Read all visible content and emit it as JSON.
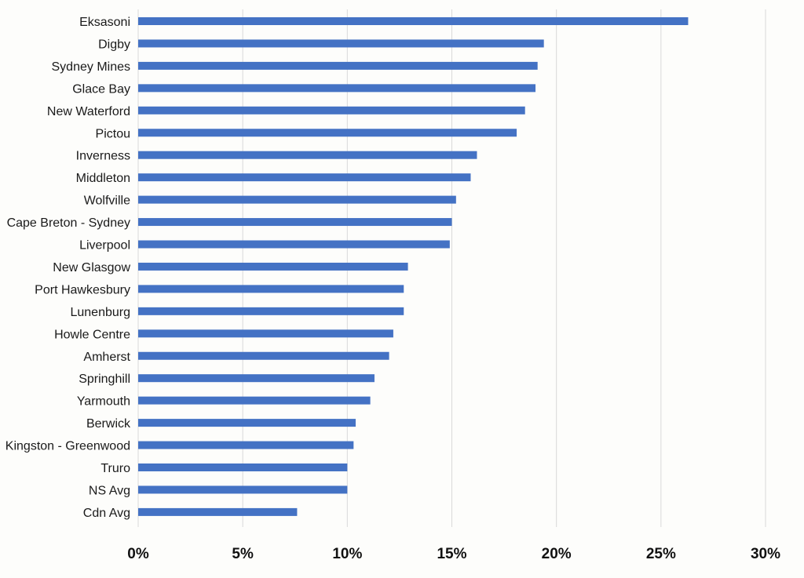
{
  "chart_data": {
    "type": "bar",
    "orientation": "horizontal",
    "categories": [
      "Eksasoni",
      "Digby",
      "Sydney Mines",
      "Glace Bay",
      "New Waterford",
      "Pictou",
      "Inverness",
      "Middleton",
      "Wolfville",
      "Cape Breton - Sydney",
      "Liverpool",
      "New Glasgow",
      "Port Hawkesbury",
      "Lunenburg",
      "Howle Centre",
      "Amherst",
      "Springhill",
      "Yarmouth",
      "Berwick",
      "Kingston - Greenwood",
      "Truro",
      "NS Avg",
      "Cdn Avg"
    ],
    "values": [
      26.3,
      19.4,
      19.1,
      19.0,
      18.5,
      18.1,
      16.2,
      15.9,
      15.2,
      15.0,
      14.9,
      12.9,
      12.7,
      12.7,
      12.2,
      12.0,
      11.3,
      11.1,
      10.4,
      10.3,
      10.0,
      10.0,
      7.6
    ],
    "xlim": [
      0,
      30
    ],
    "xticks": [
      0,
      5,
      10,
      15,
      20,
      25,
      30
    ],
    "xtick_labels": [
      "0%",
      "5%",
      "10%",
      "15%",
      "20%",
      "25%",
      "30%"
    ],
    "grid": "vertical",
    "bar_color": "#4472c4",
    "title": "",
    "xlabel": "",
    "ylabel": ""
  }
}
